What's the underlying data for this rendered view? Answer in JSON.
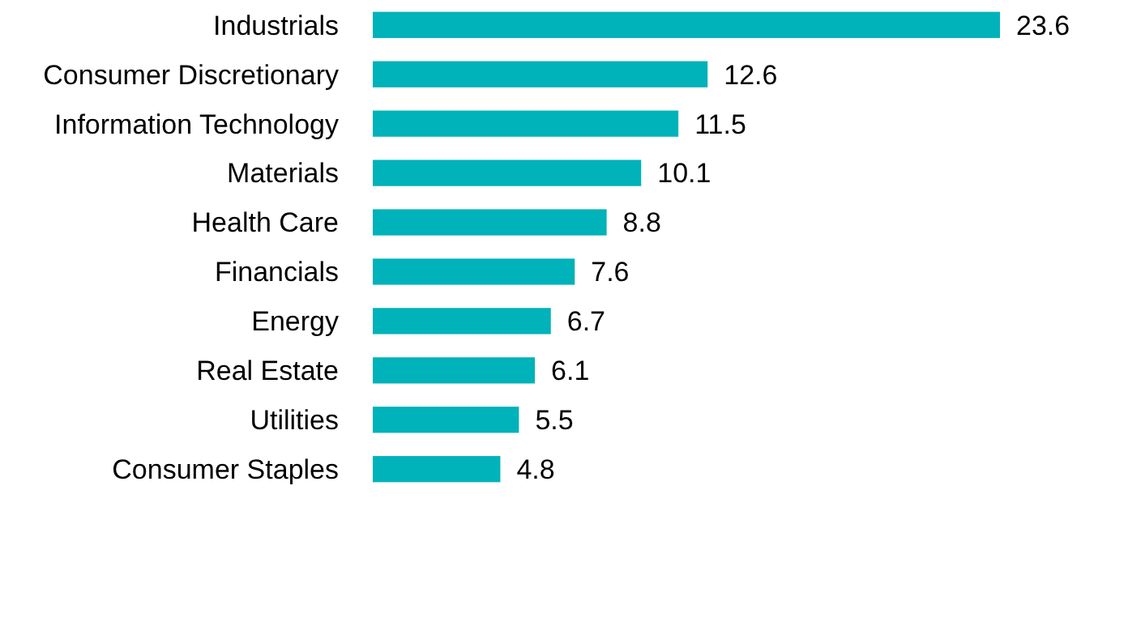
{
  "chart_data": {
    "type": "bar",
    "orientation": "horizontal",
    "categories": [
      "Industrials",
      "Consumer Discretionary",
      "Information Technology",
      "Materials",
      "Health Care",
      "Financials",
      "Energy",
      "Real Estate",
      "Utilities",
      "Consumer Staples"
    ],
    "values": [
      23.6,
      12.6,
      11.5,
      10.1,
      8.8,
      7.6,
      6.7,
      6.1,
      5.5,
      4.8
    ],
    "color": "#00b2b9",
    "data_labels": true
  }
}
